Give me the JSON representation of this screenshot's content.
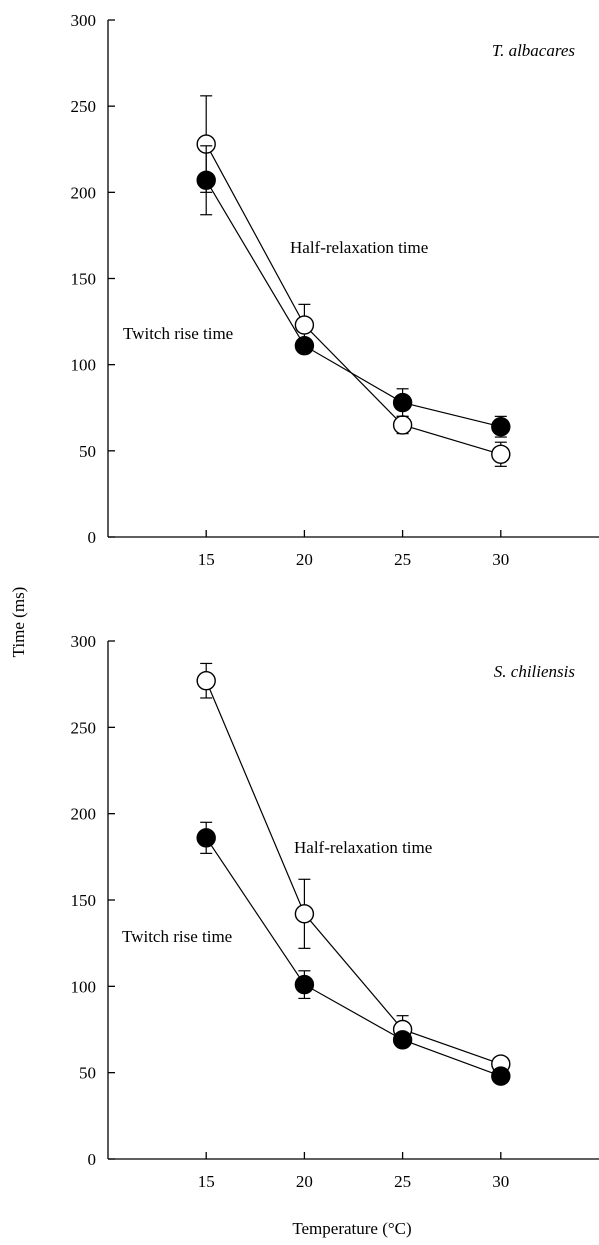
{
  "chart_data": {
    "type": "line",
    "ylabel": "Time (ms)",
    "xlabel": "Temperature (°C)",
    "grid": false,
    "panels": [
      {
        "title": "T. albacares",
        "x": [
          15,
          20,
          25,
          30
        ],
        "xlim": [
          10,
          35
        ],
        "ylim": [
          0,
          300
        ],
        "xticks": [
          "15",
          "20",
          "25",
          "30"
        ],
        "yticks": [
          "0",
          "50",
          "100",
          "150",
          "200",
          "250",
          "300"
        ],
        "series": [
          {
            "name": "Half-relaxation time",
            "marker": "open-circle",
            "values": [
              228,
              123,
              65,
              48
            ],
            "errors": [
              28,
              12,
              5,
              7
            ]
          },
          {
            "name": "Twitch rise time",
            "marker": "filled-circle",
            "values": [
              207,
              111,
              78,
              64
            ],
            "errors": [
              20,
              4,
              8,
              6
            ]
          }
        ]
      },
      {
        "title": "S. chiliensis",
        "x": [
          15,
          20,
          25,
          30
        ],
        "xlim": [
          10,
          35
        ],
        "ylim": [
          0,
          300
        ],
        "xticks": [
          "15",
          "20",
          "25",
          "30"
        ],
        "yticks": [
          "0",
          "50",
          "100",
          "150",
          "200",
          "250",
          "300"
        ],
        "series": [
          {
            "name": "Half-relaxation time",
            "marker": "open-circle",
            "values": [
              277,
              142,
              75,
              55
            ],
            "errors": [
              10,
              20,
              8,
              3
            ]
          },
          {
            "name": "Twitch rise time",
            "marker": "filled-circle",
            "values": [
              186,
              101,
              69,
              48
            ],
            "errors": [
              9,
              8,
              4,
              2
            ]
          }
        ]
      }
    ]
  }
}
